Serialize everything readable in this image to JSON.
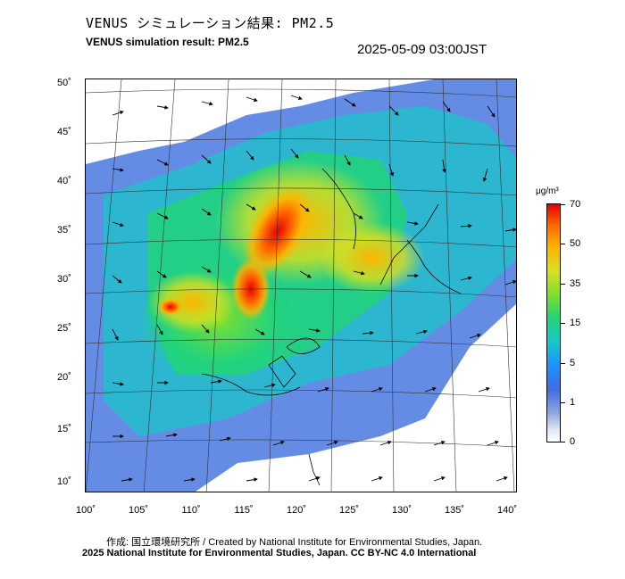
{
  "header": {
    "title_ja": "VENUS シミュレーション結果: PM2.5",
    "title_en": "VENUS simulation result: PM2.5",
    "timestamp": "2025-05-09 03:00JST"
  },
  "map": {
    "lat_labels": [
      "50˚",
      "45˚",
      "40˚",
      "35˚",
      "30˚",
      "25˚",
      "20˚",
      "15˚",
      "10˚"
    ],
    "lon_labels": [
      "100˚",
      "105˚",
      "110˚",
      "115˚",
      "120˚",
      "125˚",
      "130˚",
      "135˚",
      "140˚"
    ],
    "pollutant": "PM2.5",
    "hotspot_colors": {
      "high": "#e60000",
      "medium": "#ffb400",
      "low": "#22d47a",
      "background": "#3f6ee0"
    }
  },
  "colorbar": {
    "unit": "μg/m³",
    "labels": [
      "70",
      "50",
      "35",
      "15",
      "5",
      "1",
      "0"
    ]
  },
  "footer": {
    "credit_line": "作成: 国立環境研究所 / Created by National Institute for Environmental Studies, Japan.",
    "license_line": "2025 National Institute for Environmental Studies, Japan. CC BY-NC 4.0 International"
  }
}
